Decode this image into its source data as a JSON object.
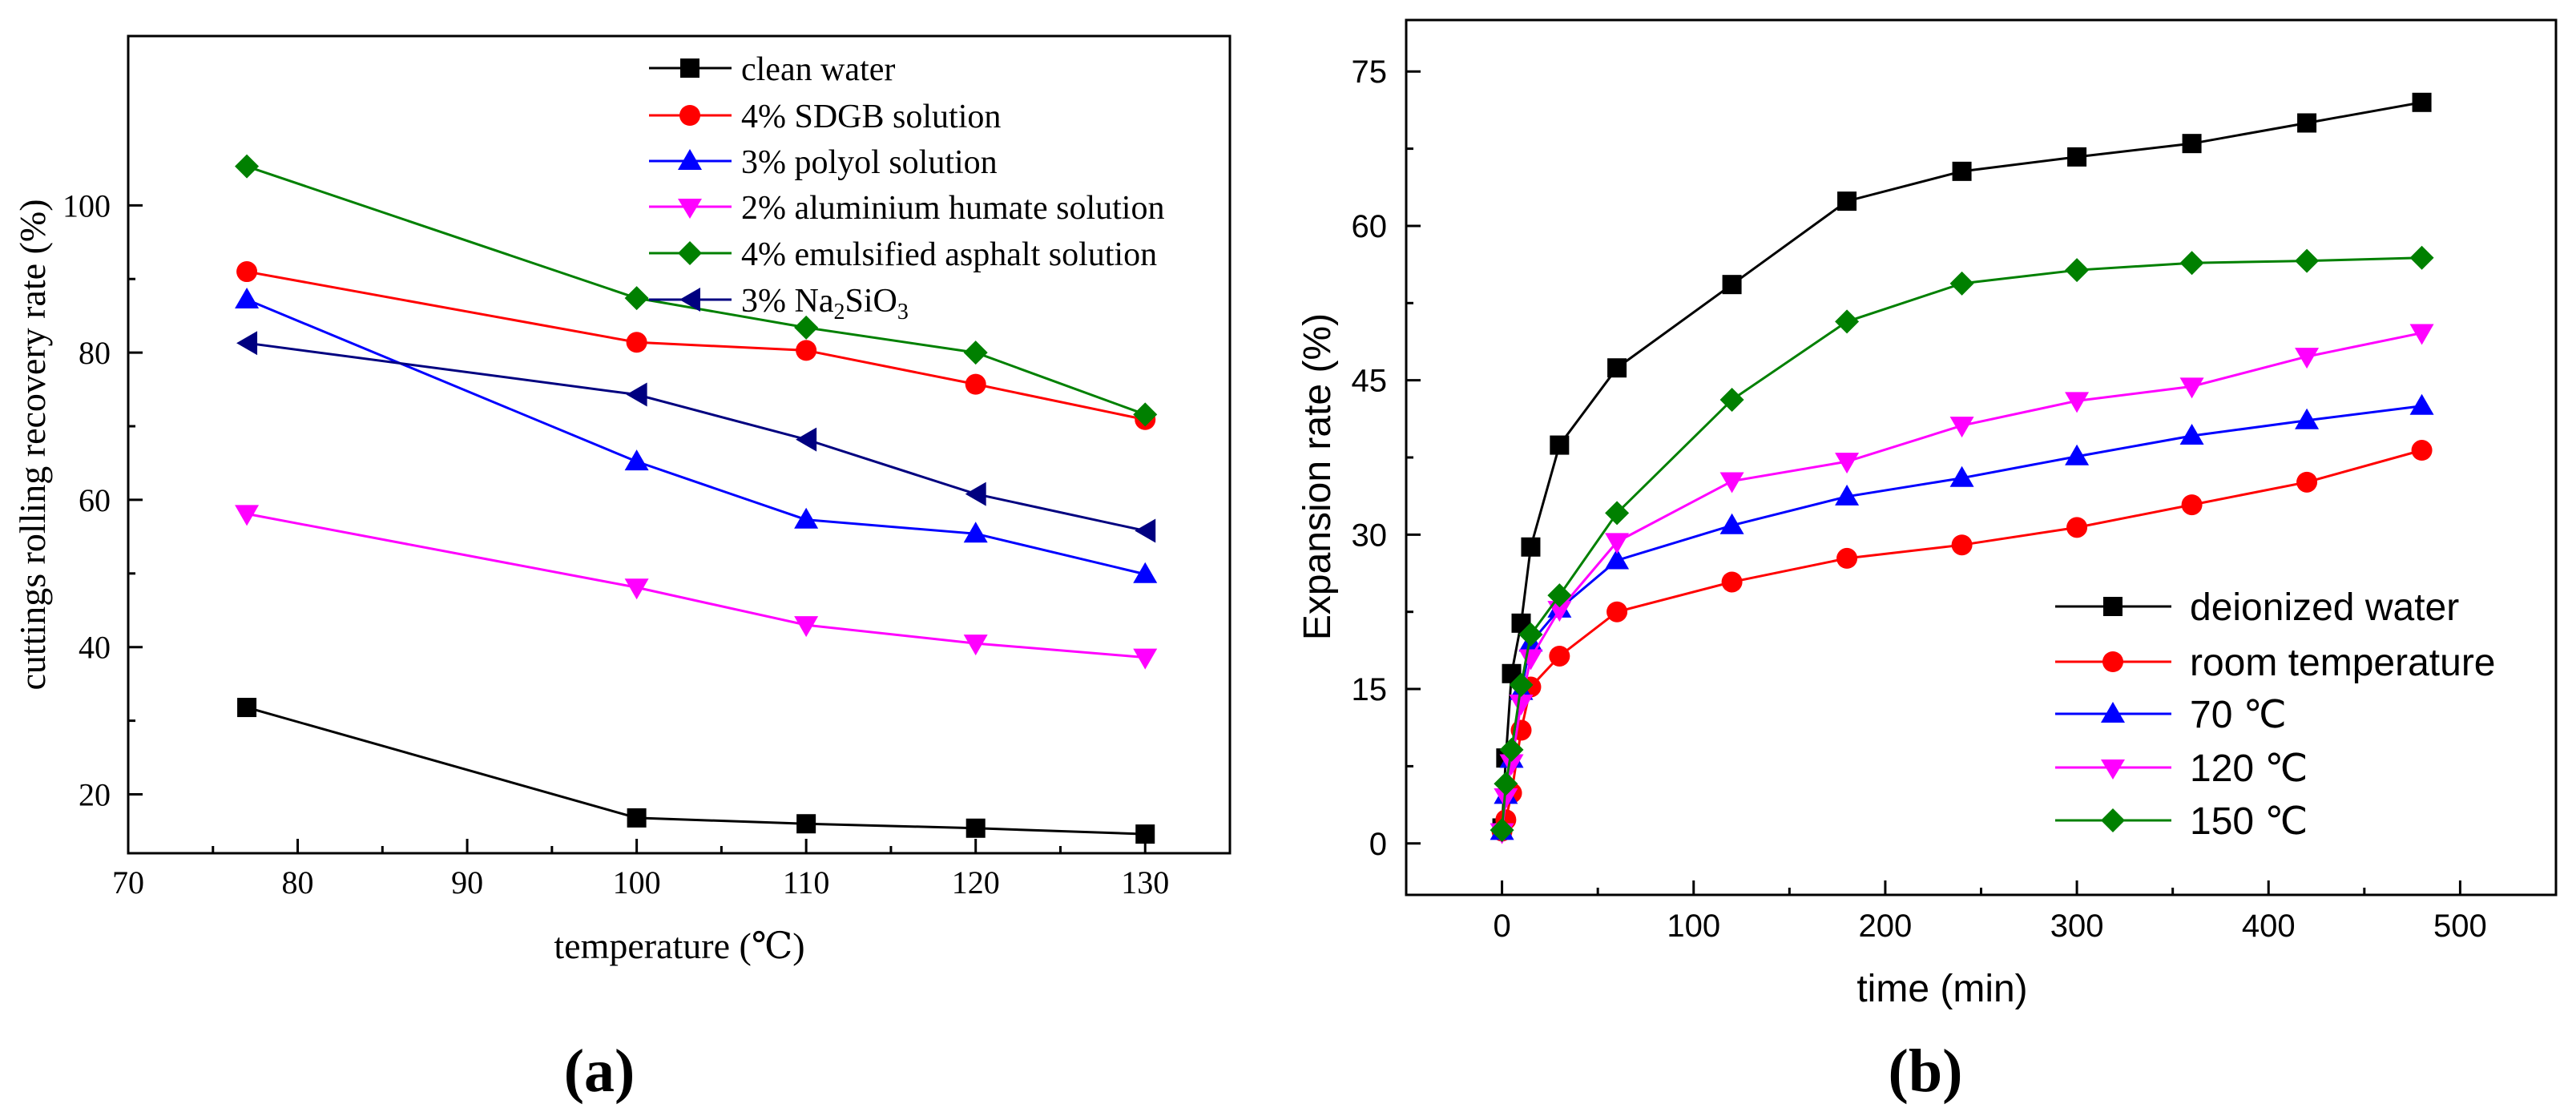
{
  "colors": {
    "black": "#000000",
    "red": "#ff0000",
    "blue": "#0000ff",
    "magenta": "#ff00ff",
    "green": "#008000",
    "navy": "#000080"
  },
  "chart_data": [
    {
      "id": "a",
      "type": "line",
      "panel_label": "(a)",
      "title": "",
      "xlabel": "temperature (℃)",
      "ylabel": "cuttings rolling recovery rate (%)",
      "xlim": [
        70,
        135
      ],
      "ylim": [
        12,
        123
      ],
      "xticks": [
        70,
        80,
        90,
        100,
        110,
        120,
        130
      ],
      "yticks": [
        20,
        40,
        60,
        80,
        100
      ],
      "grid": false,
      "legend_position": "top-right",
      "x": [
        77,
        100,
        110,
        120,
        130
      ],
      "series": [
        {
          "name": "clean water",
          "marker": "square",
          "color": "#000000",
          "values": [
            31.8,
            16.8,
            16.0,
            15.4,
            14.6
          ]
        },
        {
          "name": "4% SDGB solution",
          "marker": "circle",
          "color": "#ff0000",
          "values": [
            91.0,
            81.4,
            80.3,
            75.7,
            70.9
          ]
        },
        {
          "name": "3% polyol solution",
          "marker": "triangle-up",
          "color": "#0000ff",
          "values": [
            87.2,
            65.2,
            57.3,
            55.4,
            49.9
          ]
        },
        {
          "name": "2% aluminium humate solution",
          "marker": "triangle-down",
          "color": "#ff00ff",
          "values": [
            58.1,
            48.1,
            43.0,
            40.5,
            38.6
          ]
        },
        {
          "name": "4% emulsified asphalt solution",
          "marker": "diamond",
          "color": "#008000",
          "values": [
            105.3,
            87.4,
            83.4,
            80.0,
            71.6
          ]
        },
        {
          "name": "3% Na2SiO3",
          "name_base": "3% Na",
          "name_sub1": "2",
          "name_mid": "SiO",
          "name_sub2": "3",
          "marker": "triangle-left",
          "color": "#000080",
          "values": [
            81.3,
            74.3,
            68.2,
            60.8,
            55.8
          ]
        }
      ]
    },
    {
      "id": "b",
      "type": "line",
      "panel_label": "(b)",
      "title": "",
      "xlabel": "time (min)",
      "ylabel": "Expansion rate (%)",
      "xlim": [
        -50,
        550
      ],
      "ylim": [
        -5,
        80
      ],
      "xticks": [
        0,
        100,
        200,
        300,
        400,
        500
      ],
      "yticks": [
        0,
        15,
        30,
        45,
        60,
        75
      ],
      "grid": false,
      "legend_position": "bottom-right",
      "series": [
        {
          "name": "deionized water",
          "marker": "square",
          "color": "#000000",
          "x": [
            0,
            2,
            5,
            10,
            15,
            30,
            60,
            120,
            180,
            240,
            300,
            360,
            420,
            480
          ],
          "values": [
            1.5,
            8.3,
            16.5,
            21.4,
            28.8,
            38.7,
            46.2,
            54.3,
            62.4,
            65.3,
            66.7,
            68.0,
            70.0,
            72.0
          ]
        },
        {
          "name": "room temperature",
          "marker": "circle",
          "color": "#ff0000",
          "x": [
            0,
            2,
            5,
            10,
            15,
            30,
            60,
            120,
            180,
            240,
            300,
            360,
            420,
            480
          ],
          "values": [
            1.2,
            2.3,
            4.9,
            11.0,
            15.2,
            18.2,
            22.5,
            25.4,
            27.7,
            29.0,
            30.7,
            32.9,
            35.1,
            38.2
          ]
        },
        {
          "name": "70 ℃",
          "marker": "triangle-up",
          "color": "#0000ff",
          "x": [
            0,
            2,
            5,
            10,
            15,
            30,
            60,
            120,
            180,
            240,
            300,
            360,
            420,
            480
          ],
          "values": [
            1.2,
            4.7,
            8.2,
            14.8,
            19.5,
            22.8,
            27.5,
            30.9,
            33.7,
            35.5,
            37.6,
            39.6,
            41.1,
            42.5
          ]
        },
        {
          "name": "120 ℃",
          "marker": "triangle-down",
          "color": "#ff00ff",
          "x": [
            0,
            2,
            5,
            10,
            15,
            30,
            60,
            120,
            180,
            240,
            300,
            360,
            420,
            480
          ],
          "values": [
            1.1,
            4.5,
            7.8,
            13.6,
            18.0,
            22.7,
            29.3,
            35.2,
            37.1,
            40.6,
            43.0,
            44.4,
            47.3,
            49.6
          ]
        },
        {
          "name": "150 ℃",
          "marker": "diamond",
          "color": "#008000",
          "x": [
            0,
            2,
            5,
            10,
            15,
            30,
            60,
            120,
            180,
            240,
            300,
            360,
            420,
            480
          ],
          "values": [
            1.3,
            5.8,
            9.1,
            15.4,
            20.3,
            24.1,
            32.1,
            43.1,
            50.7,
            54.4,
            55.7,
            56.4,
            56.6,
            56.9
          ]
        }
      ]
    }
  ]
}
